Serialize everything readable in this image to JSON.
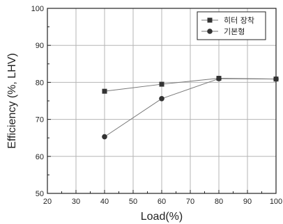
{
  "chart_data": {
    "type": "line",
    "xlabel": "Load(%)",
    "ylabel": "Efficiency (%, LHV)",
    "xlim": [
      20,
      100
    ],
    "ylim": [
      50,
      100
    ],
    "xticks": [
      20,
      30,
      40,
      50,
      60,
      70,
      80,
      90,
      100
    ],
    "yticks": [
      50,
      60,
      70,
      80,
      90,
      100
    ],
    "grid": true,
    "legend_position": "top-right",
    "series": [
      {
        "name": "히터 장착",
        "marker": "square",
        "color": "#333333",
        "x": [
          40,
          60,
          80,
          100
        ],
        "y": [
          77.6,
          79.5,
          81.1,
          80.9
        ]
      },
      {
        "name": "기본형",
        "marker": "circle",
        "color": "#333333",
        "x": [
          40,
          60,
          80,
          100
        ],
        "y": [
          65.3,
          75.6,
          81.0,
          80.9
        ]
      }
    ]
  }
}
